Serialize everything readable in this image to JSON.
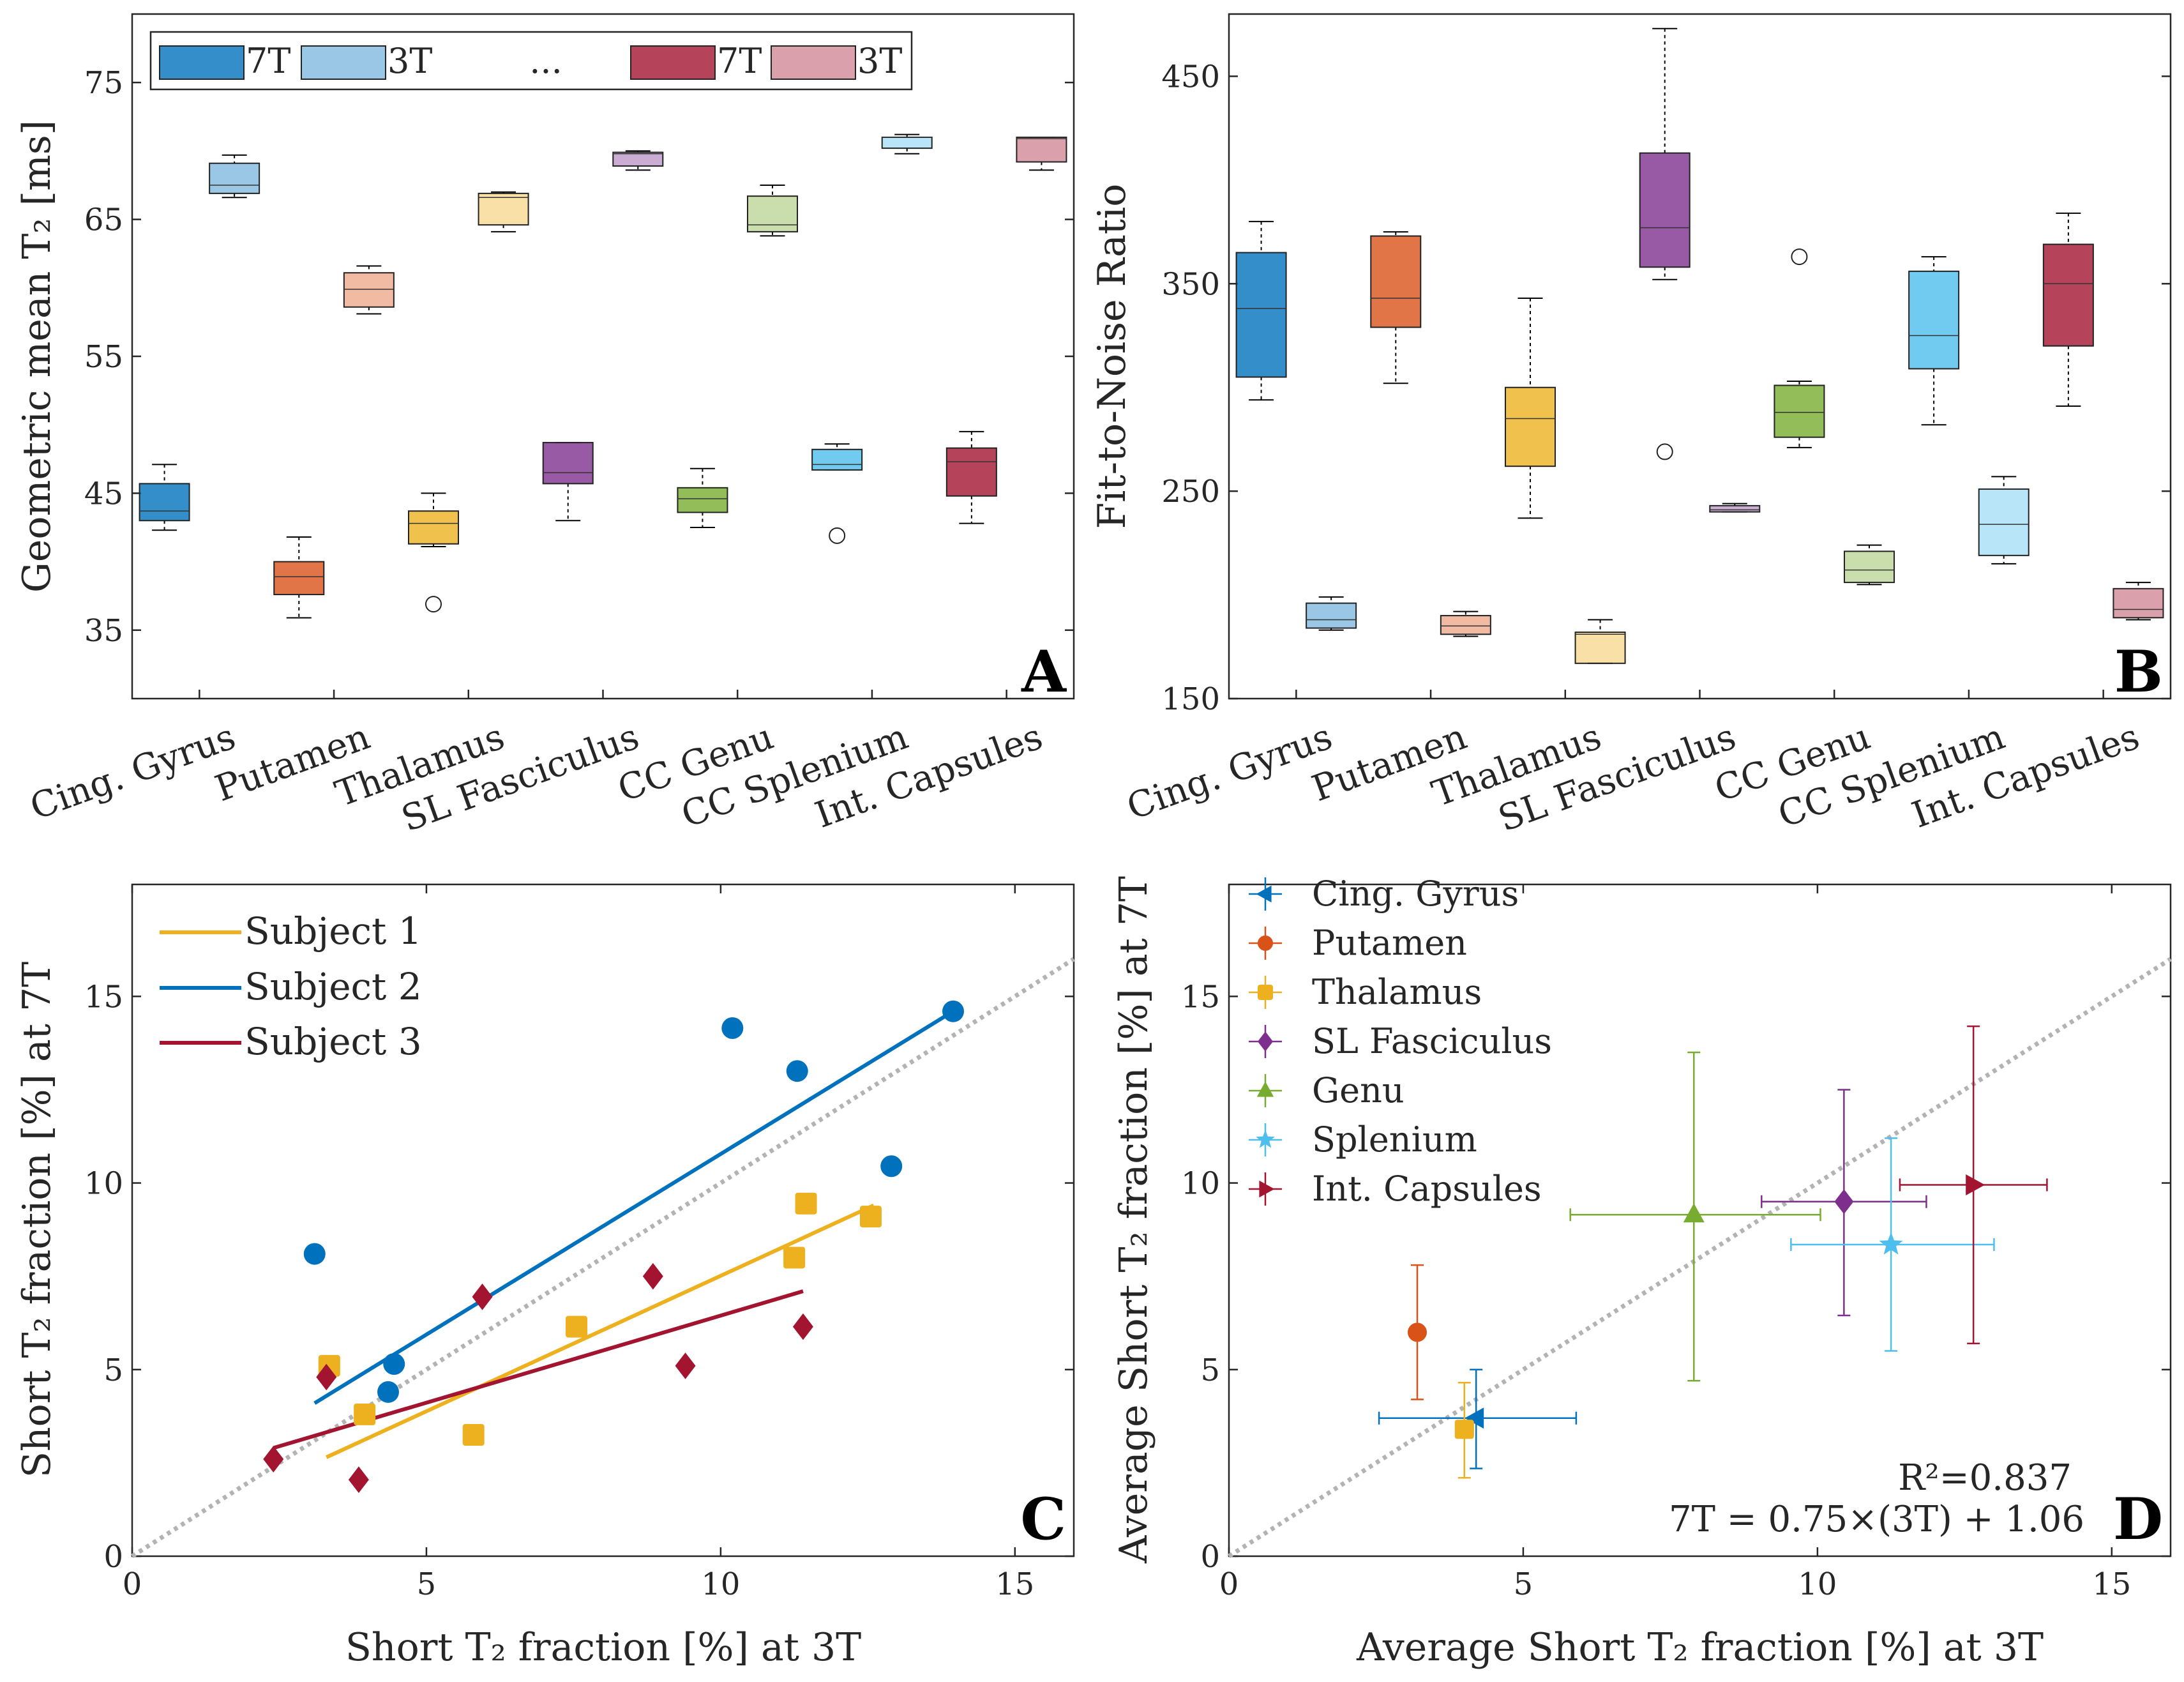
{
  "colors": {
    "cing": "#0072BD",
    "put": "#D95319",
    "tha": "#EDB120",
    "slf": "#7E2F8E",
    "genu": "#77AC30",
    "spl": "#4DBEEE",
    "int": "#A2142F",
    "identity": "#b3b3b3"
  },
  "chart_data": [
    {
      "id": "A",
      "type": "box",
      "panel_label": "A",
      "ylabel": "Geometric mean T₂ [ms]",
      "ylim": [
        30,
        80
      ],
      "yticks": [
        "35",
        "45",
        "55",
        "65",
        "75"
      ],
      "categories": [
        "Cing. Gyrus",
        "Putamen",
        "Thalamus",
        "SL Fasciculus",
        "CC Genu",
        "CC Splenium",
        "Int. Capsules"
      ],
      "legend": [
        "7T",
        "3T",
        "...",
        "7T",
        "3T"
      ],
      "series": [
        {
          "name": "7T",
          "boxes": [
            {
              "lo": 42.3,
              "q1": 43.0,
              "med": 43.7,
              "q3": 45.7,
              "hi": 47.1,
              "outliers": []
            },
            {
              "lo": 35.9,
              "q1": 37.6,
              "med": 38.9,
              "q3": 40.0,
              "hi": 41.8,
              "outliers": []
            },
            {
              "lo": 41.1,
              "q1": 41.3,
              "med": 42.8,
              "q3": 43.7,
              "hi": 45.0,
              "outliers": [
                36.9
              ]
            },
            {
              "lo": 43.0,
              "q1": 45.7,
              "med": 46.5,
              "q3": 48.7,
              "hi": 48.7,
              "outliers": []
            },
            {
              "lo": 42.5,
              "q1": 43.6,
              "med": 44.6,
              "q3": 45.4,
              "hi": 46.8,
              "outliers": []
            },
            {
              "lo": 46.7,
              "q1": 46.7,
              "med": 47.1,
              "q3": 48.2,
              "hi": 48.6,
              "outliers": [
                41.9
              ]
            },
            {
              "lo": 42.8,
              "q1": 44.8,
              "med": 47.3,
              "q3": 48.3,
              "hi": 49.5,
              "outliers": []
            }
          ]
        },
        {
          "name": "3T",
          "boxes": [
            {
              "lo": 66.6,
              "q1": 66.9,
              "med": 67.5,
              "q3": 69.1,
              "hi": 69.7,
              "outliers": []
            },
            {
              "lo": 58.1,
              "q1": 58.6,
              "med": 59.9,
              "q3": 61.1,
              "hi": 61.6,
              "outliers": []
            },
            {
              "lo": 64.1,
              "q1": 64.6,
              "med": 66.6,
              "q3": 66.9,
              "hi": 67.0,
              "outliers": []
            },
            {
              "lo": 68.6,
              "q1": 68.9,
              "med": 69.8,
              "q3": 69.9,
              "hi": 70.0,
              "outliers": []
            },
            {
              "lo": 63.8,
              "q1": 64.1,
              "med": 64.6,
              "q3": 66.7,
              "hi": 67.5,
              "outliers": []
            },
            {
              "lo": 69.8,
              "q1": 70.2,
              "med": 71.0,
              "q3": 71.0,
              "hi": 71.2,
              "outliers": []
            },
            {
              "lo": 68.6,
              "q1": 69.2,
              "med": 70.9,
              "q3": 71.0,
              "hi": 71.0,
              "outliers": []
            }
          ]
        }
      ]
    },
    {
      "id": "B",
      "type": "box",
      "panel_label": "B",
      "ylabel": "Fit-to-Noise Ratio",
      "ylim": [
        150,
        480
      ],
      "yticks": [
        "150",
        "250",
        "350",
        "450"
      ],
      "categories": [
        "Cing. Gyrus",
        "Putamen",
        "Thalamus",
        "SL Fasciculus",
        "CC Genu",
        "CC Splenium",
        "Int. Capsules"
      ],
      "series": [
        {
          "name": "7T",
          "boxes": [
            {
              "lo": 294,
              "q1": 305,
              "med": 338,
              "q3": 365,
              "hi": 380,
              "outliers": []
            },
            {
              "lo": 302,
              "q1": 329,
              "med": 343,
              "q3": 373,
              "hi": 375,
              "outliers": []
            },
            {
              "lo": 237,
              "q1": 262,
              "med": 285,
              "q3": 300,
              "hi": 343,
              "outliers": []
            },
            {
              "lo": 352,
              "q1": 358,
              "med": 377,
              "q3": 413,
              "hi": 473,
              "outliers": [
                269
              ]
            },
            {
              "lo": 271,
              "q1": 276,
              "med": 288,
              "q3": 301,
              "hi": 303,
              "outliers": [
                363
              ]
            },
            {
              "lo": 282,
              "q1": 309,
              "med": 325,
              "q3": 356,
              "hi": 363,
              "outliers": []
            },
            {
              "lo": 291,
              "q1": 320,
              "med": 350,
              "q3": 369,
              "hi": 384,
              "outliers": []
            }
          ]
        },
        {
          "name": "3T",
          "boxes": [
            {
              "lo": 183,
              "q1": 184,
              "med": 188,
              "q3": 196,
              "hi": 199,
              "outliers": []
            },
            {
              "lo": 180,
              "q1": 181,
              "med": 185,
              "q3": 190,
              "hi": 192,
              "outliers": []
            },
            {
              "lo": 167,
              "q1": 167,
              "med": 181,
              "q3": 182,
              "hi": 188,
              "outliers": []
            },
            {
              "lo": 240,
              "q1": 240,
              "med": 241,
              "q3": 243,
              "hi": 244,
              "outliers": []
            },
            {
              "lo": 205,
              "q1": 206,
              "med": 212,
              "q3": 221,
              "hi": 224,
              "outliers": []
            },
            {
              "lo": 215,
              "q1": 219,
              "med": 234,
              "q3": 251,
              "hi": 257,
              "outliers": []
            },
            {
              "lo": 188,
              "q1": 189,
              "med": 193,
              "q3": 203,
              "hi": 206,
              "outliers": []
            }
          ]
        }
      ]
    },
    {
      "id": "C",
      "type": "scatter",
      "panel_label": "C",
      "xlabel": "Short T₂ fraction [%] at 3T",
      "ylabel": "Short T₂ fraction [%] at 7T",
      "xlim": [
        0,
        16
      ],
      "ylim": [
        0,
        18
      ],
      "xticks": [
        "0",
        "5",
        "10",
        "15"
      ],
      "yticks": [
        "0",
        "5",
        "10",
        "15"
      ],
      "identity_line": true,
      "series": [
        {
          "name": "Subject 1",
          "marker": "square",
          "x": [
            3.35,
            3.95,
            5.8,
            7.55,
            11.25,
            11.45,
            12.55
          ],
          "y": [
            5.1,
            3.8,
            3.25,
            6.15,
            8.0,
            9.45,
            9.1
          ],
          "fit": {
            "x": [
              3.3,
              12.6
            ],
            "y": [
              2.65,
              9.4
            ]
          }
        },
        {
          "name": "Subject 2",
          "marker": "circle",
          "x": [
            3.1,
            4.35,
            4.45,
            10.2,
            11.3,
            12.9,
            13.95
          ],
          "y": [
            8.1,
            4.4,
            5.15,
            14.15,
            13.0,
            10.45,
            14.6
          ],
          "fit": {
            "x": [
              3.1,
              13.95
            ],
            "y": [
              4.1,
              14.6
            ]
          }
        },
        {
          "name": "Subject 3",
          "marker": "diamond",
          "x": [
            2.4,
            3.3,
            3.85,
            5.95,
            8.85,
            9.4,
            11.4
          ],
          "y": [
            2.6,
            4.8,
            2.05,
            6.95,
            7.5,
            5.1,
            6.15
          ],
          "fit": {
            "x": [
              2.4,
              11.4
            ],
            "y": [
              2.9,
              7.1
            ]
          }
        }
      ]
    },
    {
      "id": "D",
      "type": "scatter",
      "panel_label": "D",
      "xlabel": "Average Short T₂ fraction [%] at 3T",
      "ylabel": "Average Short T₂ fraction [%] at 7T",
      "xlim": [
        0,
        16
      ],
      "ylim": [
        0,
        18
      ],
      "xticks": [
        "0",
        "5",
        "10",
        "15"
      ],
      "yticks": [
        "0",
        "5",
        "10",
        "15"
      ],
      "identity_line": true,
      "points": [
        {
          "name": "Cing. Gyrus",
          "marker": "tri-left",
          "x": 4.2,
          "y": 3.7,
          "xerr": [
            2.55,
            5.9
          ],
          "yerr": [
            2.35,
            5.0
          ]
        },
        {
          "name": "Putamen",
          "marker": "circle",
          "x": 3.2,
          "y": 6.0,
          "xerr": [
            3.2,
            3.2
          ],
          "yerr": [
            4.2,
            7.8
          ]
        },
        {
          "name": "Thalamus",
          "marker": "square",
          "x": 4.0,
          "y": 3.4,
          "xerr": [
            3.95,
            4.15
          ],
          "yerr": [
            2.1,
            4.65
          ]
        },
        {
          "name": "SL Fasciculus",
          "marker": "diamond",
          "x": 10.45,
          "y": 9.5,
          "xerr": [
            9.05,
            11.85
          ],
          "yerr": [
            6.45,
            12.5
          ]
        },
        {
          "name": "Genu",
          "marker": "tri-up",
          "x": 7.9,
          "y": 9.15,
          "xerr": [
            5.8,
            10.05
          ],
          "yerr": [
            4.7,
            13.5
          ]
        },
        {
          "name": "Splenium",
          "marker": "star",
          "x": 11.25,
          "y": 8.35,
          "xerr": [
            9.55,
            13.0
          ],
          "yerr": [
            5.5,
            11.2
          ]
        },
        {
          "name": "Int. Capsules",
          "marker": "tri-right",
          "x": 12.65,
          "y": 9.95,
          "xerr": [
            11.4,
            13.9
          ],
          "yerr": [
            5.7,
            14.2
          ]
        }
      ],
      "annotation_r2": "R²=0.837",
      "annotation_fit": "7T = 0.75×(3T) + 1.06"
    }
  ]
}
